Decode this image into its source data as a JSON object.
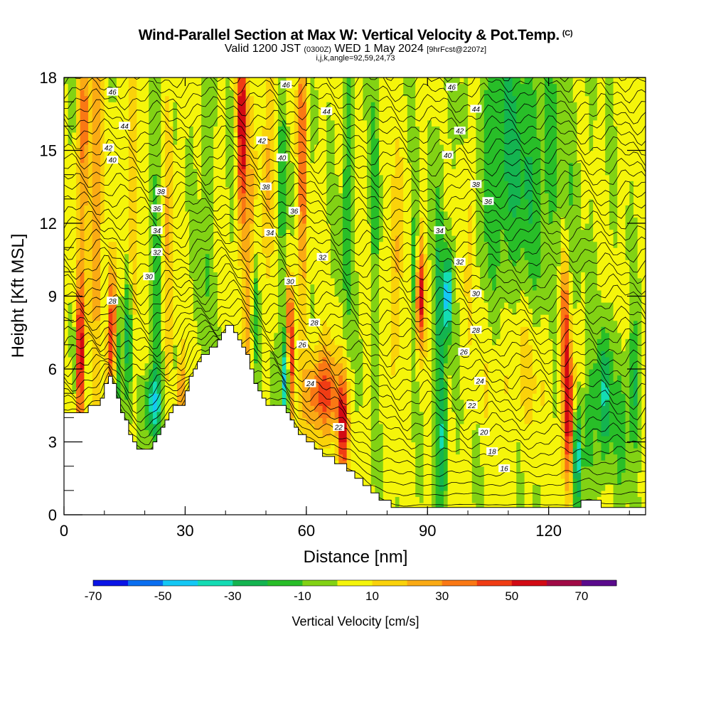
{
  "header": {
    "title": "Wind-Parallel Section at Max W: Vertical Velocity & Pot.Temp.",
    "title_mark": "(C)",
    "valid_a": "Valid 1200 JST",
    "valid_z": "(0300Z)",
    "valid_b": "WED 1 May 2024",
    "valid_fcst": "[9hrFcst@2207z]",
    "indices": "i,j,k,angle=92,59,24,73"
  },
  "chart_data": {
    "type": "heatmap",
    "xlabel": "Distance [nm]",
    "ylabel": "Height [Kft MSL]",
    "xlim": [
      0,
      144
    ],
    "ylim": [
      0,
      18
    ],
    "x_ticks": [
      0,
      30,
      60,
      90,
      120
    ],
    "y_ticks": [
      0,
      3,
      6,
      9,
      12,
      15,
      18
    ],
    "colorbar": {
      "label": "Vertical Velocity [cm/s]",
      "levels": [
        -70,
        -60,
        -50,
        -40,
        -30,
        -20,
        -10,
        0,
        10,
        20,
        30,
        40,
        50,
        60,
        70,
        80
      ],
      "tick_labels": [
        -70,
        -50,
        -30,
        -10,
        10,
        30,
        50,
        70
      ],
      "colors": [
        "#0a14e6",
        "#0a6ef0",
        "#14c8f5",
        "#14dcb4",
        "#14b450",
        "#28be28",
        "#82d214",
        "#f5f50a",
        "#fad20a",
        "#faaa14",
        "#fa7814",
        "#f03c14",
        "#d20a14",
        "#a00a46",
        "#5a0a8c"
      ]
    },
    "terrain_kft": [
      [
        0,
        4.3
      ],
      [
        5,
        4.3
      ],
      [
        9,
        4.7
      ],
      [
        11,
        5.8
      ],
      [
        13,
        4.8
      ],
      [
        15,
        3.8
      ],
      [
        17,
        3.0
      ],
      [
        19,
        2.6
      ],
      [
        21,
        2.6
      ],
      [
        23,
        3.2
      ],
      [
        25,
        3.9
      ],
      [
        27,
        4.4
      ],
      [
        29,
        4.6
      ],
      [
        31,
        5.8
      ],
      [
        33,
        6.3
      ],
      [
        35,
        6.6
      ],
      [
        37,
        7.0
      ],
      [
        39,
        7.5
      ],
      [
        40,
        7.7
      ],
      [
        41,
        7.7
      ],
      [
        42,
        7.5
      ],
      [
        44,
        6.9
      ],
      [
        46,
        6.0
      ],
      [
        48,
        5.0
      ],
      [
        50,
        4.5
      ],
      [
        52,
        4.6
      ],
      [
        54,
        4.5
      ],
      [
        56,
        4.0
      ],
      [
        58,
        3.4
      ],
      [
        60,
        3.0
      ],
      [
        62,
        2.7
      ],
      [
        64,
        2.5
      ],
      [
        66,
        2.3
      ],
      [
        68,
        2.1
      ],
      [
        70,
        1.9
      ],
      [
        72,
        1.6
      ],
      [
        74,
        1.3
      ],
      [
        76,
        0.9
      ],
      [
        78,
        0.7
      ],
      [
        80,
        0.5
      ],
      [
        82,
        0.3
      ],
      [
        84,
        0.2
      ],
      [
        90,
        0.3
      ],
      [
        100,
        0.3
      ],
      [
        110,
        0.3
      ],
      [
        120,
        0.3
      ],
      [
        124,
        0.3
      ],
      [
        126,
        0.25
      ],
      [
        128,
        0.5
      ],
      [
        130,
        0.6
      ],
      [
        133,
        0.4
      ],
      [
        136,
        0.35
      ],
      [
        140,
        0.35
      ],
      [
        144,
        0.4
      ]
    ],
    "isotherm_labels": [
      {
        "label": "46",
        "x": 12,
        "y": 17.4
      },
      {
        "label": "44",
        "x": 15,
        "y": 16.0
      },
      {
        "label": "42",
        "x": 11,
        "y": 15.1
      },
      {
        "label": "40",
        "x": 12,
        "y": 14.6
      },
      {
        "label": "38",
        "x": 24,
        "y": 13.3
      },
      {
        "label": "36",
        "x": 23,
        "y": 12.6
      },
      {
        "label": "34",
        "x": 23,
        "y": 11.7
      },
      {
        "label": "32",
        "x": 23,
        "y": 10.8
      },
      {
        "label": "30",
        "x": 21,
        "y": 9.8
      },
      {
        "label": "28",
        "x": 12,
        "y": 8.8
      },
      {
        "label": "46",
        "x": 55,
        "y": 17.7
      },
      {
        "label": "44",
        "x": 65,
        "y": 16.6
      },
      {
        "label": "42",
        "x": 49,
        "y": 15.4
      },
      {
        "label": "40",
        "x": 54,
        "y": 14.7
      },
      {
        "label": "38",
        "x": 50,
        "y": 13.5
      },
      {
        "label": "36",
        "x": 57,
        "y": 12.5
      },
      {
        "label": "34",
        "x": 51,
        "y": 11.6
      },
      {
        "label": "32",
        "x": 64,
        "y": 10.6
      },
      {
        "label": "30",
        "x": 56,
        "y": 9.6
      },
      {
        "label": "28",
        "x": 62,
        "y": 7.9
      },
      {
        "label": "26",
        "x": 59,
        "y": 7.0
      },
      {
        "label": "24",
        "x": 61,
        "y": 5.4
      },
      {
        "label": "22",
        "x": 68,
        "y": 3.6
      },
      {
        "label": "46",
        "x": 96,
        "y": 17.6
      },
      {
        "label": "44",
        "x": 102,
        "y": 16.7
      },
      {
        "label": "42",
        "x": 98,
        "y": 15.8
      },
      {
        "label": "40",
        "x": 95,
        "y": 14.8
      },
      {
        "label": "38",
        "x": 102,
        "y": 13.6
      },
      {
        "label": "36",
        "x": 105,
        "y": 12.9
      },
      {
        "label": "34",
        "x": 93,
        "y": 11.7
      },
      {
        "label": "32",
        "x": 98,
        "y": 10.4
      },
      {
        "label": "30",
        "x": 102,
        "y": 9.1
      },
      {
        "label": "28",
        "x": 102,
        "y": 7.6
      },
      {
        "label": "26",
        "x": 99,
        "y": 6.7
      },
      {
        "label": "24",
        "x": 103,
        "y": 5.5
      },
      {
        "label": "22",
        "x": 101,
        "y": 4.5
      },
      {
        "label": "20",
        "x": 104,
        "y": 3.4
      },
      {
        "label": "18",
        "x": 106,
        "y": 2.6
      },
      {
        "label": "16",
        "x": 109,
        "y": 1.9
      }
    ]
  }
}
